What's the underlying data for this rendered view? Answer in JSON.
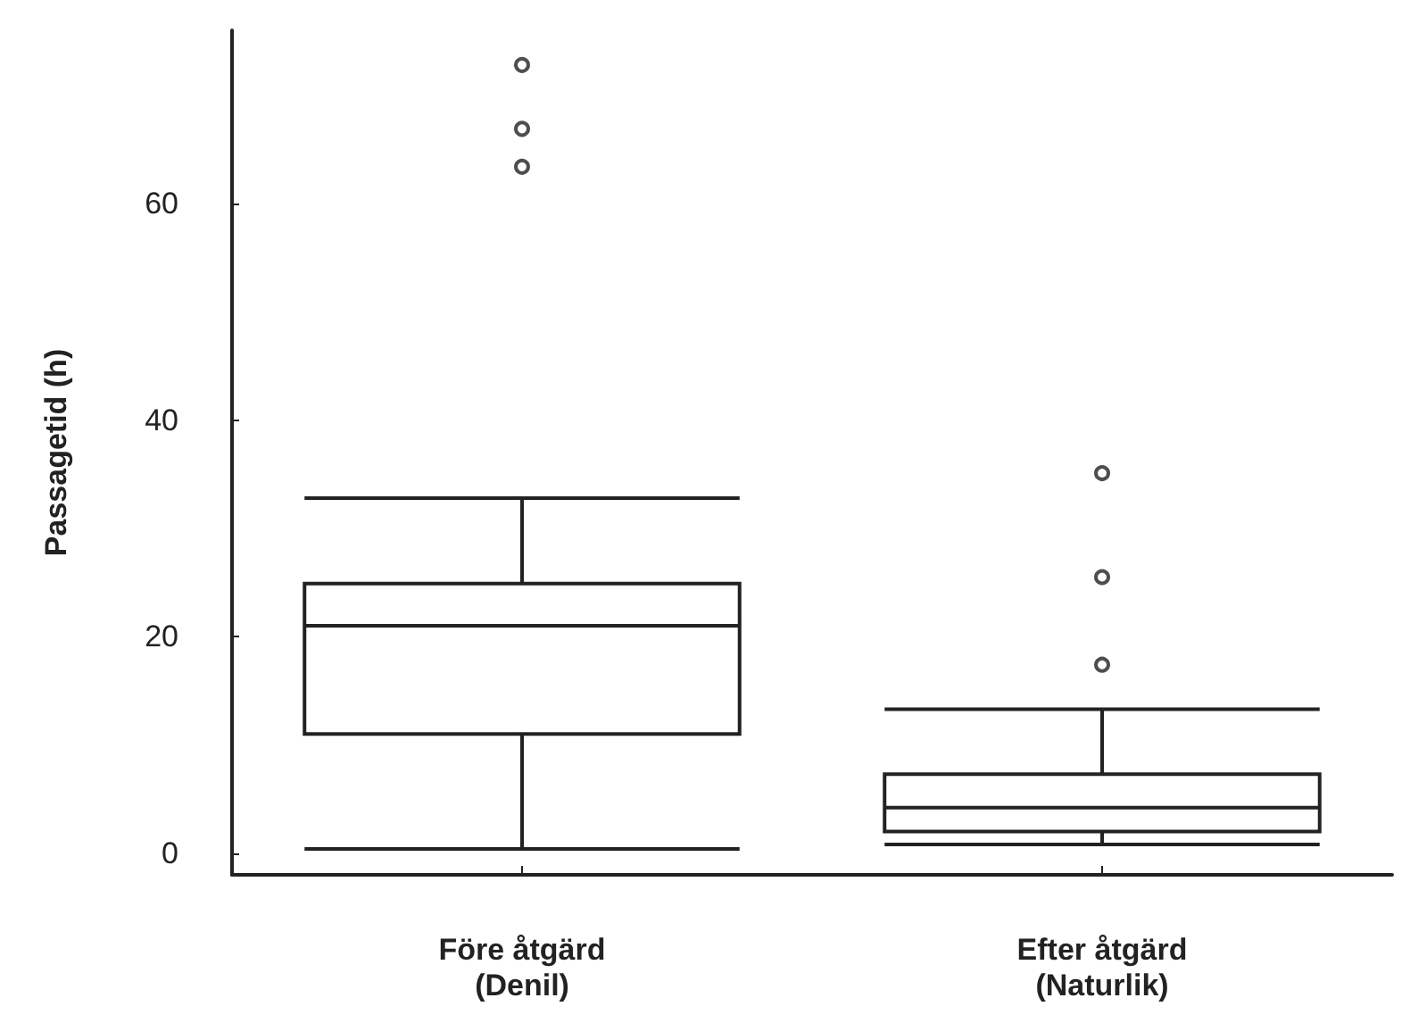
{
  "chart_data": {
    "type": "box",
    "ylabel": "Passagetid (h)",
    "categories": [
      "Före åtgärd\n(Denil)",
      "Efter åtgärd\n(Naturlik)"
    ],
    "boxes": [
      {
        "low": 0.4,
        "q1": 11,
        "median": 21,
        "q3": 24.9,
        "high": 32.8,
        "outliers": [
          63.4,
          66.9,
          72.8
        ]
      },
      {
        "low": 0.8,
        "q1": 2,
        "median": 4.2,
        "q3": 7.3,
        "high": 13.3,
        "outliers": [
          17.4,
          25.5,
          35.1
        ]
      }
    ],
    "color": "#222222",
    "ylim": [
      -2,
      76
    ],
    "yticks": [
      0,
      20,
      40,
      60
    ]
  }
}
